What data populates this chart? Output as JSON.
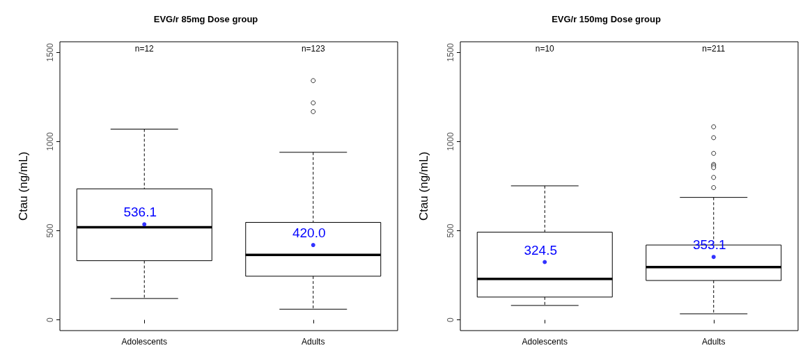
{
  "chart_data": [
    {
      "type": "box",
      "title": "EVG/r 85mg Dose group",
      "ylabel": "Ctau (ng/mL)",
      "categories": [
        "Adolescents",
        "Adults"
      ],
      "ylim": [
        -60,
        1560
      ],
      "yticks": [
        0,
        500,
        1000,
        1500
      ],
      "grid": false,
      "series": [
        {
          "color": "#000000",
          "boxes": [
            {
              "low": 120,
              "q1": 332,
              "median": 520,
              "q3": 735,
              "high": 1070,
              "mean": 536.1
            },
            {
              "low": 60,
              "q1": 245,
              "median": 365,
              "q3": 547,
              "high": 940,
              "mean": 420.0,
              "outliers": [
                1342,
                1217,
                1168
              ]
            }
          ]
        }
      ],
      "annotations": [
        "n=12",
        "n=123",
        "536.1",
        "420.0"
      ]
    },
    {
      "type": "box",
      "title": "EVG/r 150mg Dose group",
      "ylabel": "Ctau (ng/mL)",
      "categories": [
        "Adolescents",
        "Adults"
      ],
      "ylim": [
        -60,
        1560
      ],
      "yticks": [
        0,
        500,
        1000,
        1500
      ],
      "grid": false,
      "series": [
        {
          "color": "#000000",
          "boxes": [
            {
              "low": 81,
              "q1": 128,
              "median": 230,
              "q3": 492,
              "high": 752,
              "mean": 324.5
            },
            {
              "low": 34,
              "q1": 221,
              "median": 296,
              "q3": 420,
              "high": 687,
              "mean": 353.1,
              "outliers": [
                1083,
                1022,
                934,
                872,
                864,
                854,
                799,
                742
              ]
            }
          ]
        }
      ],
      "annotations": [
        "n=10",
        "n=211",
        "324.5",
        "353.1"
      ]
    }
  ]
}
